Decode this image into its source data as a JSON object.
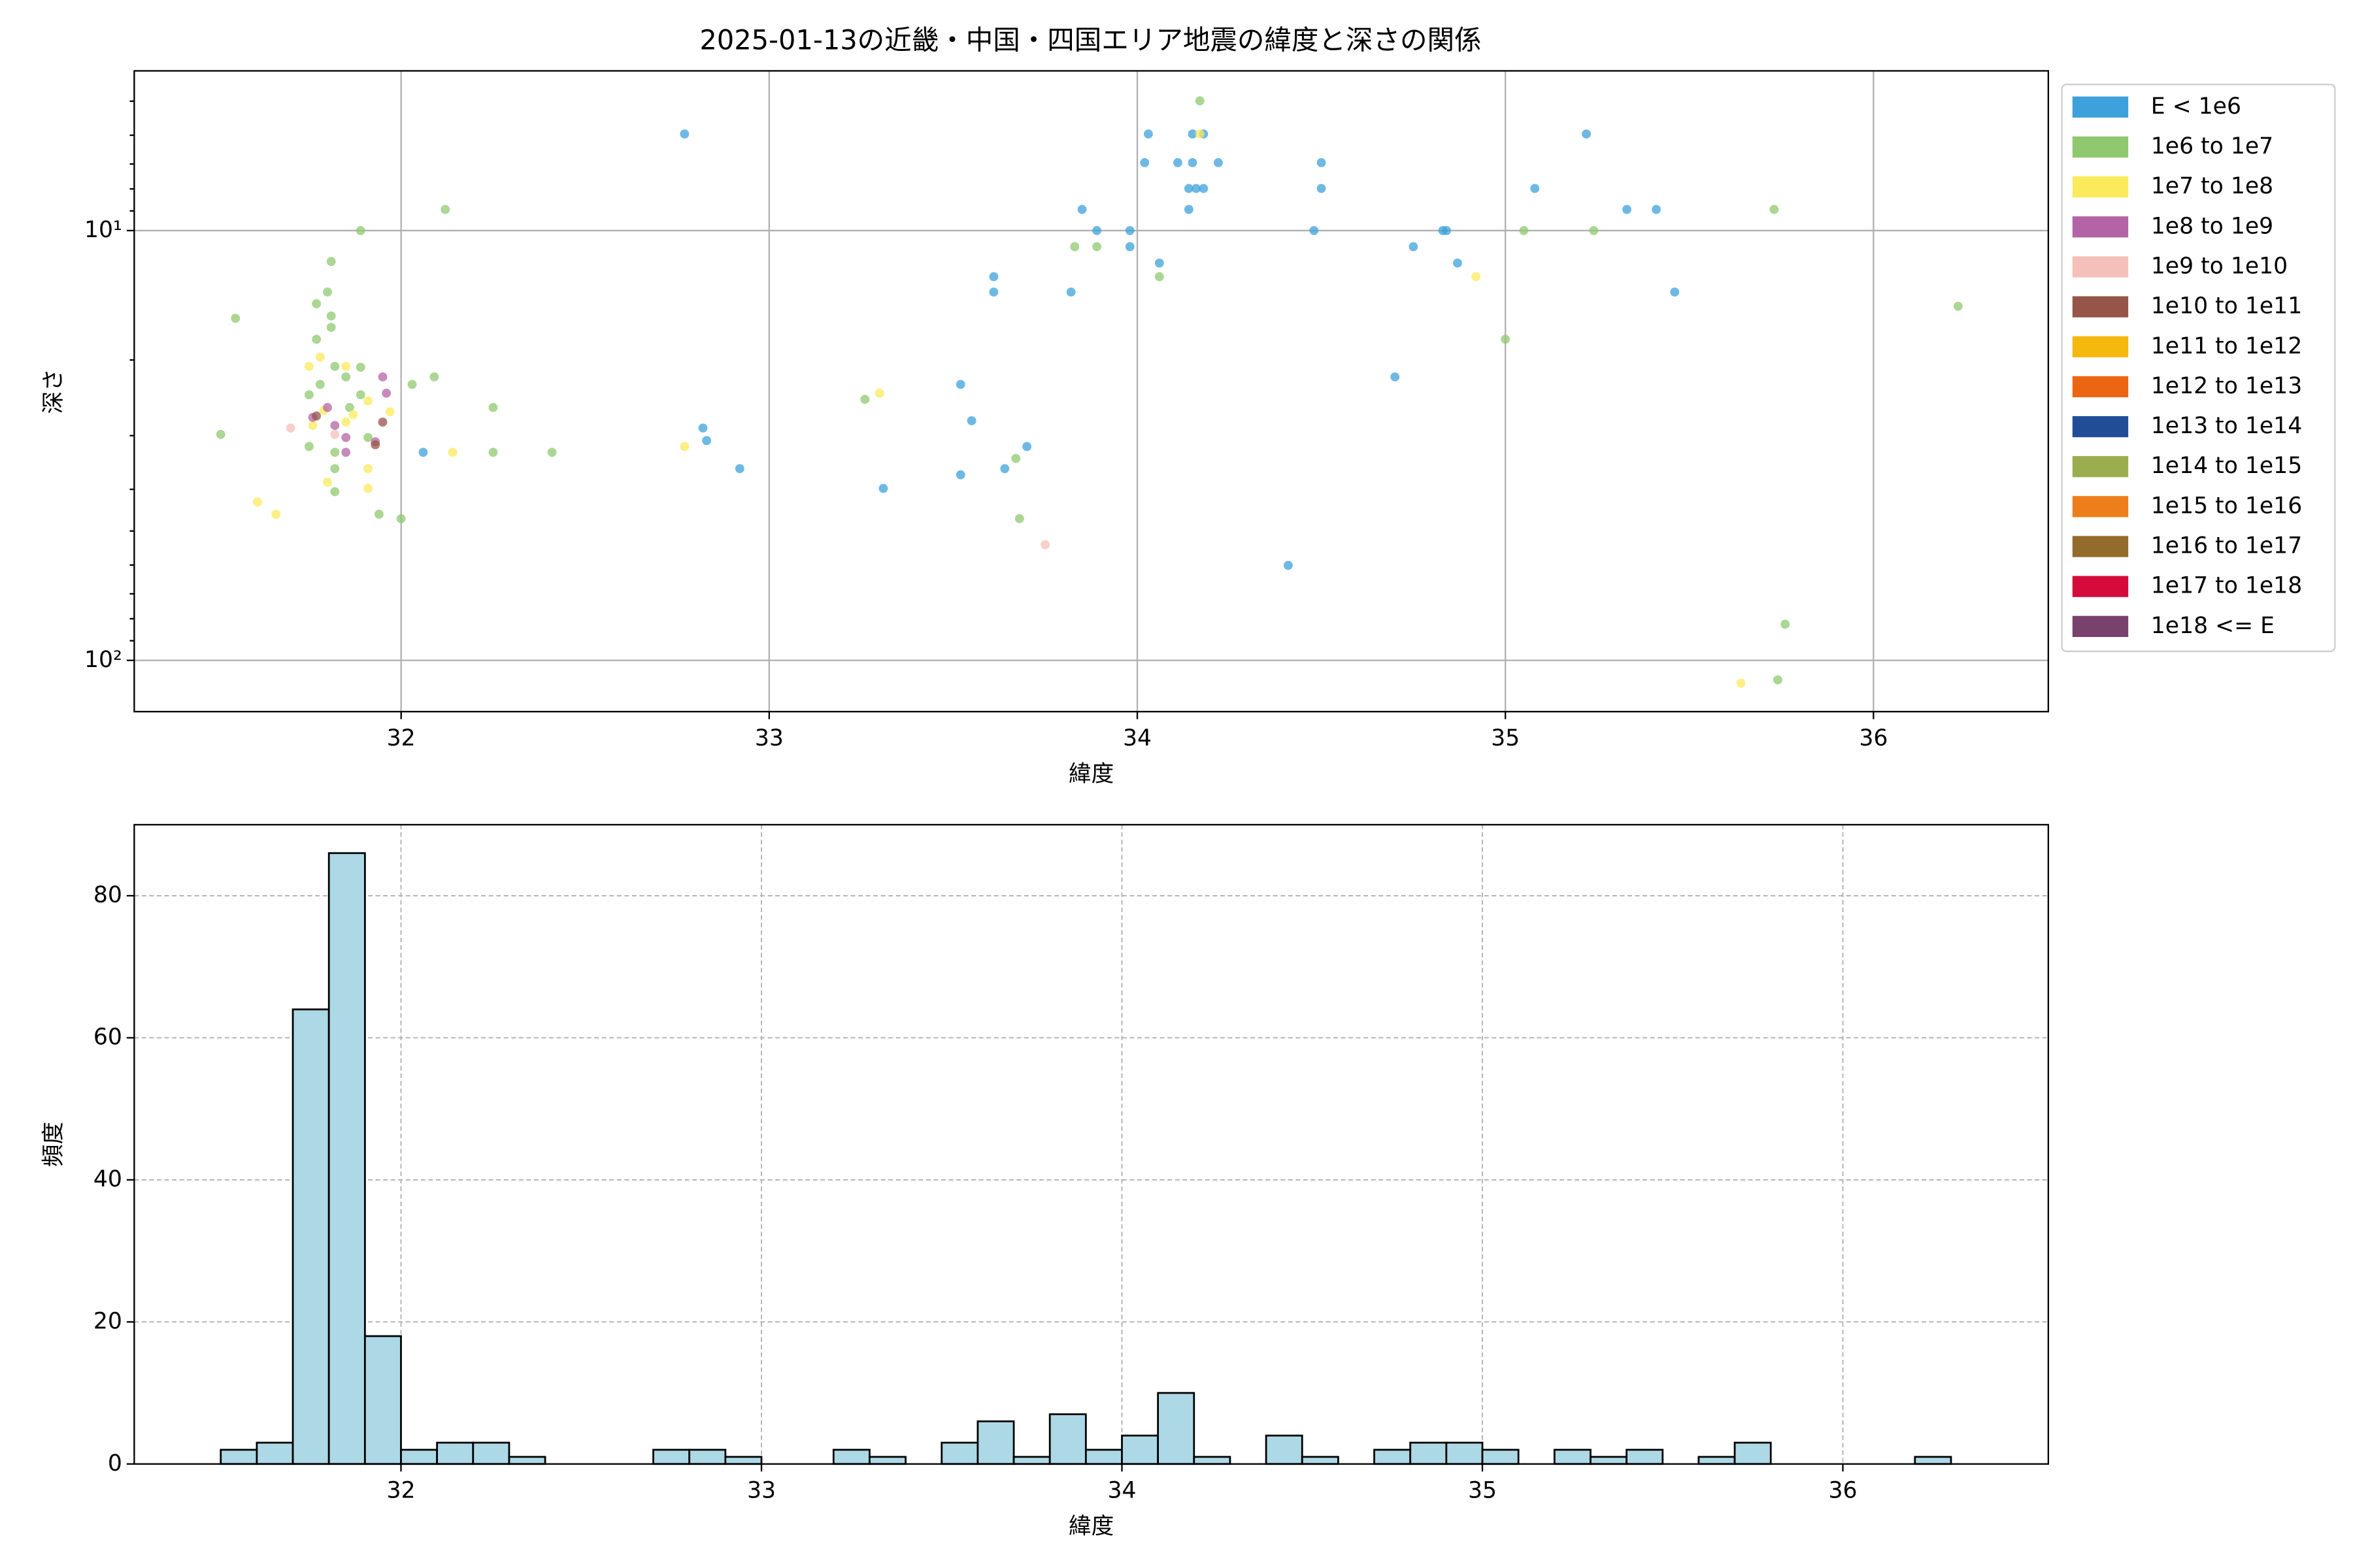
{
  "chart_data": [
    {
      "type": "scatter",
      "title": "2025-01-13の近畿・中国・四国エリア地震の緯度と深さの関係",
      "x_label": "緯度",
      "y_label": "深さ",
      "xlim": [
        31.275,
        36.475
      ],
      "ylim": [
        4.25,
        131.6
      ],
      "y_scale": "log",
      "y_inverted": true,
      "xticks": [
        32,
        33,
        34,
        35,
        36
      ],
      "yticks": [
        {
          "value": 10,
          "label": "10¹"
        },
        {
          "value": 100,
          "label": "10²"
        }
      ],
      "grid": true,
      "legend_position": "outside-right",
      "series": [
        {
          "name": "E < 1e6",
          "color": "#3ea1db",
          "x": [
            32.77,
            32.82,
            32.83,
            32.92,
            32.06,
            33.31,
            33.52,
            33.55,
            33.52,
            33.64,
            33.7,
            33.61,
            33.61,
            33.82,
            33.85,
            33.89,
            33.98,
            33.98,
            34.03,
            34.02,
            34.06,
            34.11,
            34.15,
            34.15,
            34.14,
            34.16,
            34.18,
            34.14,
            34.18,
            34.22,
            34.41,
            34.48,
            34.5,
            34.5,
            34.7,
            34.75,
            34.83,
            34.84,
            34.87,
            35.08,
            35.22,
            35.33,
            35.41,
            35.46
          ],
          "values": [
            5.96,
            28.8,
            30.8,
            35.8,
            32.8,
            39.8,
            22.8,
            27.7,
            37.0,
            35.8,
            31.8,
            12.8,
            13.9,
            13.9,
            8.93,
            10,
            10,
            10.9,
            5.96,
            6.95,
            11.9,
            6.95,
            5.96,
            6.95,
            7.98,
            7.98,
            7.98,
            8.93,
            5.96,
            6.95,
            60.1,
            10,
            6.95,
            7.98,
            21.9,
            10.9,
            10,
            10,
            11.9,
            7.98,
            5.96,
            8.93,
            8.93,
            13.9
          ]
        },
        {
          "name": "1e6 to 1e7",
          "color": "#8fc86f",
          "x": [
            34.17,
            32.12,
            31.89,
            31.55,
            31.51,
            33.83,
            33.89,
            34.06,
            35.05,
            35.24,
            35.73,
            36.23,
            35.0,
            32.03,
            32.09,
            32.25,
            32.25,
            32.41,
            33.26,
            33.67,
            33.68,
            35.76,
            35.74,
            31.94,
            32.0,
            31.81,
            31.8,
            31.77,
            31.81,
            31.81,
            31.77,
            31.82,
            31.89,
            31.75,
            31.78,
            31.86,
            31.75,
            31.82,
            31.82,
            31.82,
            31.91,
            31.89,
            31.85
          ],
          "values": [
            4.99,
            8.93,
            10,
            16.0,
            29.8,
            10.9,
            10.9,
            12.8,
            10,
            10,
            8.93,
            15.0,
            17.9,
            22.8,
            21.9,
            25.8,
            32.8,
            32.8,
            24.7,
            33.9,
            46.8,
            82.4,
            111,
            45.7,
            46.8,
            11.8,
            13.9,
            14.8,
            15.8,
            16.8,
            17.9,
            20.7,
            20.8,
            24.1,
            22.8,
            25.8,
            31.8,
            32.8,
            35.8,
            40.5,
            30.3,
            24.1,
            21.9
          ]
        },
        {
          "name": "1e7 to 1e8",
          "color": "#fbea5b",
          "x": [
            34.17,
            34.92,
            33.3,
            32.77,
            32.14,
            31.61,
            31.66,
            35.64,
            31.75,
            31.78,
            31.85,
            31.91,
            31.79,
            31.87,
            31.97,
            31.76,
            31.91,
            31.91,
            31.8,
            31.85
          ],
          "values": [
            5.96,
            12.8,
            23.9,
            31.8,
            32.8,
            42.8,
            45.7,
            113,
            20.7,
            19.7,
            20.7,
            24.9,
            26.2,
            26.8,
            26.4,
            28.4,
            35.8,
            39.8,
            38.5,
            27.9
          ]
        },
        {
          "name": "1e8 to 1e9",
          "color": "#b364a6",
          "x": [
            31.95,
            31.96,
            31.8,
            31.76,
            31.82,
            31.85,
            31.93,
            31.85
          ],
          "values": [
            21.9,
            23.9,
            25.8,
            27.2,
            28.4,
            30.3,
            31.0,
            32.8
          ]
        },
        {
          "name": "1e9 to 1e10",
          "color": "#f4c0b9",
          "x": [
            31.7,
            33.75,
            31.82
          ],
          "values": [
            28.8,
            53.8,
            29.8
          ]
        },
        {
          "name": "1e10 to 1e11",
          "color": "#955548",
          "x": [
            31.95,
            31.77,
            31.93
          ],
          "values": [
            27.9,
            27.0,
            31.5
          ]
        },
        {
          "name": "1e11 to 1e12",
          "color": "#f5b80f",
          "x": [],
          "values": []
        },
        {
          "name": "1e12 to 1e13",
          "color": "#ec6512",
          "x": [],
          "values": []
        },
        {
          "name": "1e13 to 1e14",
          "color": "#1f4e96",
          "x": [],
          "values": []
        },
        {
          "name": "1e14 to 1e15",
          "color": "#9aae4f",
          "x": [],
          "values": []
        },
        {
          "name": "1e15 to 1e16",
          "color": "#ee7e1a",
          "x": [],
          "values": []
        },
        {
          "name": "1e16 to 1e17",
          "color": "#936c2b",
          "x": [],
          "values": []
        },
        {
          "name": "1e17 to 1e18",
          "color": "#d50b3c",
          "x": [],
          "values": []
        },
        {
          "name": "1e18 <= E",
          "color": "#79416e",
          "x": [],
          "values": []
        }
      ]
    },
    {
      "type": "histogram",
      "x_label": "緯度",
      "y_label": "頻度",
      "xlim": [
        31.26,
        36.57
      ],
      "ylim": [
        0,
        90
      ],
      "xticks": [
        32,
        33,
        34,
        35,
        36
      ],
      "yticks": [
        0,
        20,
        40,
        60,
        80
      ],
      "grid": true,
      "color": "#add8e6",
      "edge_color": "#000000",
      "bins": [
        31.5,
        31.6,
        31.7,
        31.8,
        31.9,
        32.0,
        32.1,
        32.2,
        32.3,
        32.4,
        32.5,
        32.6,
        32.7,
        32.8,
        32.9,
        33.0,
        33.1,
        33.2,
        33.3,
        33.4,
        33.5,
        33.6,
        33.7,
        33.8,
        33.9,
        34.0,
        34.1,
        34.2,
        34.3,
        34.4,
        34.5,
        34.6,
        34.7,
        34.8,
        34.9,
        35.0,
        35.1,
        35.2,
        35.3,
        35.4,
        35.5,
        35.6,
        35.7,
        35.8,
        35.9,
        36.0,
        36.1,
        36.2,
        36.3
      ],
      "values": [
        2,
        3,
        64,
        86,
        18,
        2,
        3,
        3,
        1,
        0,
        0,
        0,
        2,
        2,
        1,
        0,
        0,
        2,
        1,
        0,
        3,
        6,
        1,
        7,
        2,
        4,
        10,
        1,
        0,
        4,
        1,
        0,
        2,
        3,
        3,
        2,
        0,
        2,
        1,
        2,
        0,
        1,
        3,
        0,
        0,
        0,
        0,
        1
      ]
    }
  ]
}
